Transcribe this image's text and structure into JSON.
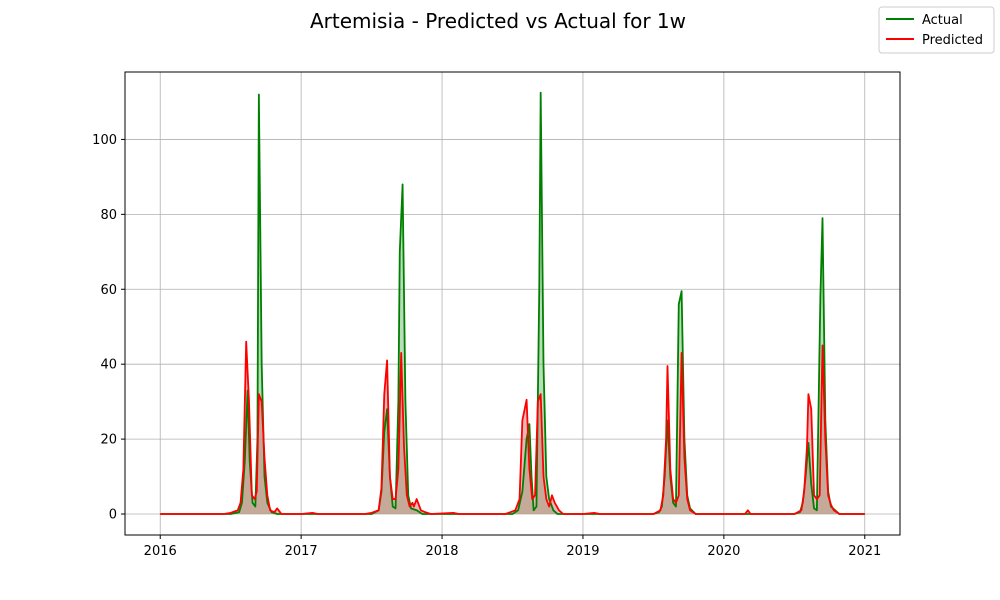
{
  "chart_data": {
    "type": "line",
    "title": "Artemisia - Predicted vs Actual for 1w",
    "xlabel": "",
    "ylabel": "",
    "xlim": [
      2015.75,
      2021.25
    ],
    "ylim": [
      -5.6,
      118
    ],
    "x_ticks": [
      2016,
      2017,
      2018,
      2019,
      2020,
      2021
    ],
    "x_tick_labels": [
      "2016",
      "2017",
      "2018",
      "2019",
      "2020",
      "2021"
    ],
    "y_ticks": [
      0,
      20,
      40,
      60,
      80,
      100
    ],
    "y_tick_labels": [
      "0",
      "20",
      "40",
      "60",
      "80",
      "100"
    ],
    "grid": true,
    "legend": "top-right",
    "fill_between": true,
    "colors": {
      "actual": "#008000",
      "predicted": "#ff0000",
      "fill_actual": "#7fbf7f",
      "fill_predicted": "#d08080"
    },
    "series": [
      {
        "name": "Actual",
        "points": [
          [
            2016.0,
            0
          ],
          [
            2016.5,
            0
          ],
          [
            2016.56,
            0.5
          ],
          [
            2016.58,
            3
          ],
          [
            2016.6,
            14
          ],
          [
            2016.62,
            33
          ],
          [
            2016.635,
            14
          ],
          [
            2016.655,
            3
          ],
          [
            2016.675,
            2
          ],
          [
            2016.69,
            20
          ],
          [
            2016.7,
            112
          ],
          [
            2016.72,
            40
          ],
          [
            2016.74,
            10
          ],
          [
            2016.76,
            3
          ],
          [
            2016.79,
            0.5
          ],
          [
            2016.83,
            0
          ],
          [
            2017.0,
            0
          ],
          [
            2017.5,
            0
          ],
          [
            2017.55,
            1
          ],
          [
            2017.57,
            6
          ],
          [
            2017.59,
            22
          ],
          [
            2017.61,
            28
          ],
          [
            2017.63,
            10
          ],
          [
            2017.65,
            2
          ],
          [
            2017.67,
            1.5
          ],
          [
            2017.69,
            30
          ],
          [
            2017.7,
            70
          ],
          [
            2017.72,
            88
          ],
          [
            2017.74,
            30
          ],
          [
            2017.76,
            5
          ],
          [
            2017.78,
            1.5
          ],
          [
            2017.82,
            1
          ],
          [
            2017.86,
            0
          ],
          [
            2018.0,
            0
          ],
          [
            2018.5,
            0
          ],
          [
            2018.54,
            1
          ],
          [
            2018.57,
            6
          ],
          [
            2018.6,
            20
          ],
          [
            2018.62,
            24
          ],
          [
            2018.635,
            10
          ],
          [
            2018.65,
            1
          ],
          [
            2018.67,
            2
          ],
          [
            2018.69,
            60
          ],
          [
            2018.7,
            112.5
          ],
          [
            2018.72,
            40
          ],
          [
            2018.74,
            10
          ],
          [
            2018.76,
            4
          ],
          [
            2018.79,
            1
          ],
          [
            2018.82,
            0
          ],
          [
            2019.0,
            0
          ],
          [
            2019.5,
            0
          ],
          [
            2019.54,
            0.5
          ],
          [
            2019.56,
            2
          ],
          [
            2019.58,
            10
          ],
          [
            2019.6,
            25
          ],
          [
            2019.62,
            10
          ],
          [
            2019.64,
            3
          ],
          [
            2019.66,
            2
          ],
          [
            2019.68,
            56
          ],
          [
            2019.7,
            59.5
          ],
          [
            2019.72,
            20
          ],
          [
            2019.74,
            5
          ],
          [
            2019.76,
            1.5
          ],
          [
            2019.8,
            0
          ],
          [
            2020.0,
            0
          ],
          [
            2020.5,
            0
          ],
          [
            2020.54,
            0.5
          ],
          [
            2020.56,
            3
          ],
          [
            2020.58,
            10
          ],
          [
            2020.6,
            19
          ],
          [
            2020.62,
            8
          ],
          [
            2020.64,
            1.5
          ],
          [
            2020.66,
            1
          ],
          [
            2020.685,
            58
          ],
          [
            2020.7,
            79
          ],
          [
            2020.72,
            25
          ],
          [
            2020.74,
            6
          ],
          [
            2020.76,
            2
          ],
          [
            2020.79,
            1
          ],
          [
            2020.82,
            0
          ],
          [
            2021.0,
            0
          ]
        ]
      },
      {
        "name": "Predicted",
        "points": [
          [
            2016.0,
            0
          ],
          [
            2016.45,
            0
          ],
          [
            2016.5,
            0.3
          ],
          [
            2016.55,
            1
          ],
          [
            2016.57,
            3
          ],
          [
            2016.59,
            12
          ],
          [
            2016.61,
            46
          ],
          [
            2016.63,
            30
          ],
          [
            2016.65,
            5
          ],
          [
            2016.67,
            4
          ],
          [
            2016.685,
            6
          ],
          [
            2016.7,
            32
          ],
          [
            2016.72,
            30
          ],
          [
            2016.74,
            15
          ],
          [
            2016.76,
            5
          ],
          [
            2016.78,
            1
          ],
          [
            2016.81,
            0.5
          ],
          [
            2016.83,
            1.5
          ],
          [
            2016.86,
            0
          ],
          [
            2017.0,
            0
          ],
          [
            2017.08,
            0.3
          ],
          [
            2017.12,
            0
          ],
          [
            2017.45,
            0
          ],
          [
            2017.5,
            0.3
          ],
          [
            2017.55,
            1
          ],
          [
            2017.57,
            7
          ],
          [
            2017.59,
            32
          ],
          [
            2017.61,
            41
          ],
          [
            2017.63,
            10
          ],
          [
            2017.65,
            4
          ],
          [
            2017.67,
            4
          ],
          [
            2017.69,
            12
          ],
          [
            2017.71,
            43
          ],
          [
            2017.73,
            18
          ],
          [
            2017.75,
            5
          ],
          [
            2017.77,
            2
          ],
          [
            2017.79,
            3
          ],
          [
            2017.8,
            2
          ],
          [
            2017.82,
            4
          ],
          [
            2017.85,
            1
          ],
          [
            2017.88,
            0.5
          ],
          [
            2017.92,
            0
          ],
          [
            2018.08,
            0.3
          ],
          [
            2018.12,
            0
          ],
          [
            2018.45,
            0
          ],
          [
            2018.52,
            1
          ],
          [
            2018.55,
            4
          ],
          [
            2018.57,
            25
          ],
          [
            2018.6,
            30.5
          ],
          [
            2018.62,
            12
          ],
          [
            2018.64,
            4
          ],
          [
            2018.66,
            5
          ],
          [
            2018.68,
            30
          ],
          [
            2018.7,
            32
          ],
          [
            2018.72,
            10
          ],
          [
            2018.74,
            4
          ],
          [
            2018.76,
            2
          ],
          [
            2018.78,
            5
          ],
          [
            2018.8,
            3
          ],
          [
            2018.83,
            1
          ],
          [
            2018.86,
            0
          ],
          [
            2019.0,
            0
          ],
          [
            2019.08,
            0.3
          ],
          [
            2019.12,
            0
          ],
          [
            2019.5,
            0
          ],
          [
            2019.55,
            1
          ],
          [
            2019.57,
            5
          ],
          [
            2019.59,
            20
          ],
          [
            2019.6,
            39.5
          ],
          [
            2019.62,
            12
          ],
          [
            2019.64,
            4
          ],
          [
            2019.66,
            3
          ],
          [
            2019.68,
            5
          ],
          [
            2019.7,
            43
          ],
          [
            2019.72,
            15
          ],
          [
            2019.74,
            4
          ],
          [
            2019.76,
            1
          ],
          [
            2019.8,
            0
          ],
          [
            2020.0,
            0
          ],
          [
            2020.15,
            0
          ],
          [
            2020.17,
            1
          ],
          [
            2020.19,
            0
          ],
          [
            2020.5,
            0
          ],
          [
            2020.55,
            1
          ],
          [
            2020.57,
            6
          ],
          [
            2020.59,
            18
          ],
          [
            2020.6,
            32
          ],
          [
            2020.62,
            28
          ],
          [
            2020.64,
            5
          ],
          [
            2020.66,
            4
          ],
          [
            2020.68,
            5
          ],
          [
            2020.7,
            45
          ],
          [
            2020.72,
            20
          ],
          [
            2020.74,
            5
          ],
          [
            2020.76,
            2.5
          ],
          [
            2020.78,
            1
          ],
          [
            2020.82,
            0
          ],
          [
            2021.0,
            0
          ]
        ]
      }
    ]
  }
}
